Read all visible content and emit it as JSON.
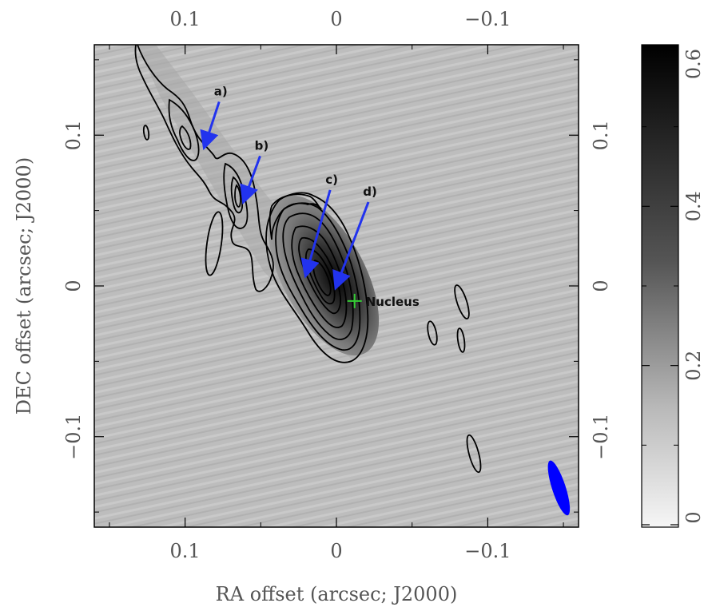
{
  "chart_data": {
    "type": "heatmap",
    "xlabel": "RA offset (arcsec; J2000)",
    "ylabel": "DEC offset (arcsec; J2000)",
    "xlim": [
      0.16,
      -0.16
    ],
    "ylim": [
      -0.16,
      0.16
    ],
    "x_ticks": [
      {
        "value": 0.1,
        "label": "0.1"
      },
      {
        "value": 0,
        "label": "0"
      },
      {
        "value": -0.1,
        "label": "−0.1"
      }
    ],
    "y_ticks": [
      {
        "value": 0.1,
        "label": "0.1"
      },
      {
        "value": 0,
        "label": "0"
      },
      {
        "value": -0.1,
        "label": "−0.1"
      }
    ],
    "colorbar": {
      "range": [
        0,
        0.6
      ],
      "ticks": [
        {
          "value": 0,
          "label": "0"
        },
        {
          "value": 0.2,
          "label": "0.2"
        },
        {
          "value": 0.4,
          "label": "0.4"
        },
        {
          "value": 0.6,
          "label": "0.6"
        }
      ]
    },
    "annotations": [
      {
        "label": "a)",
        "x": 0.087,
        "y": 0.093
      },
      {
        "label": "b)",
        "x": 0.061,
        "y": 0.057
      },
      {
        "label": "c)",
        "x": 0.02,
        "y": 0.008
      },
      {
        "label": "d)",
        "x": 0.0,
        "y": 0.0
      }
    ],
    "nucleus": {
      "label": "Nucleus",
      "x": -0.012,
      "y": -0.01,
      "color": "#33cc33"
    },
    "beam": {
      "x": -0.147,
      "y": -0.134,
      "major": 0.038,
      "minor": 0.009,
      "pa_deg": 18,
      "color": "#0000ff"
    },
    "arrow_color": "#2233ee"
  }
}
